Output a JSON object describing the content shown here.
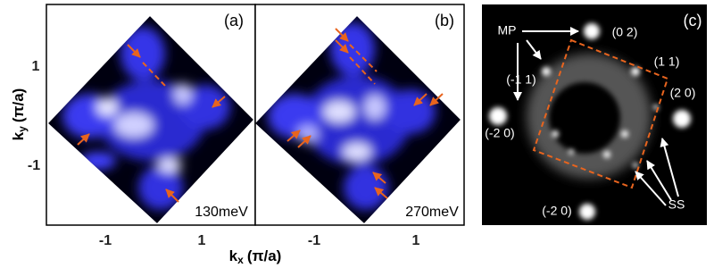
{
  "panels": [
    {
      "label": "(a)",
      "energy": "130meV"
    },
    {
      "label": "(b)",
      "energy": "270meV"
    },
    {
      "label": "(c)",
      "annotations": {
        "mp": "MP",
        "q02": "(0 2)",
        "qm11": "(-1 1)",
        "q11": "(1 1)",
        "q20": "(2 0)",
        "qm20_left": "(-2 0)",
        "qm20_bottom": "(-2 0)",
        "ss": "SS"
      }
    }
  ],
  "axes": {
    "y_label": {
      "symbol": "k",
      "subscript": "y",
      "unit": "(π/a)"
    },
    "x_label": {
      "symbol": "k",
      "subscript": "x",
      "unit": "(π/a)"
    },
    "y_ticks": [
      "1",
      "-1"
    ],
    "x_ticks": [
      "-1",
      "1"
    ]
  }
}
